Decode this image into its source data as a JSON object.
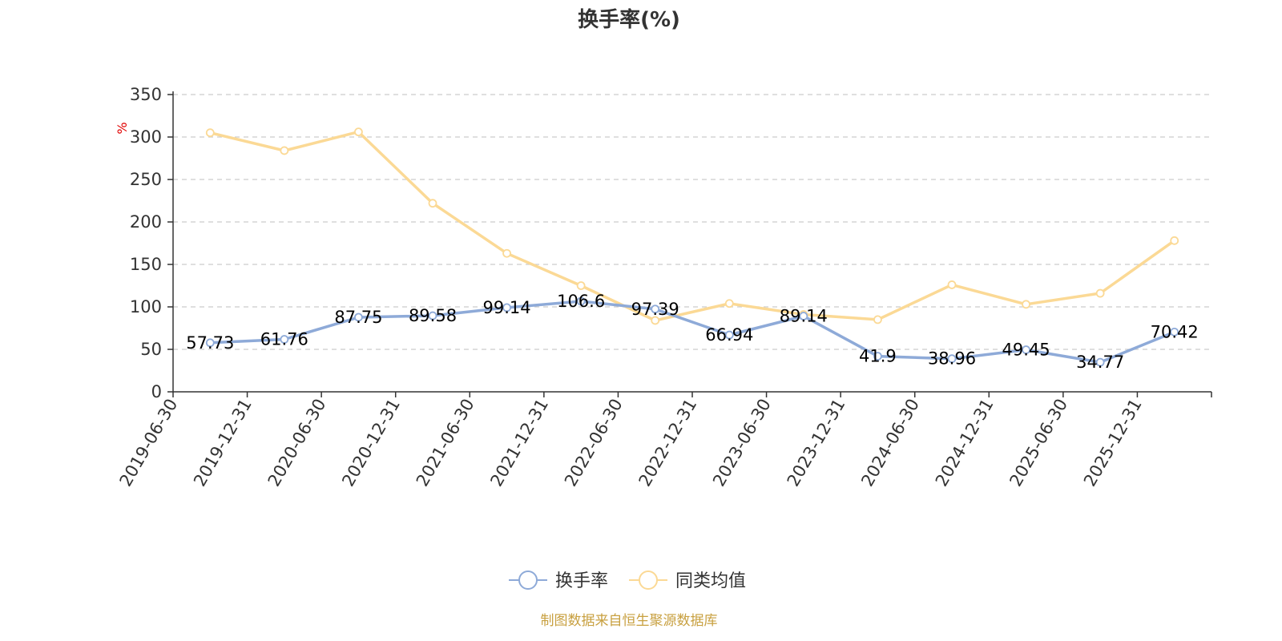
{
  "chart_data": {
    "type": "line",
    "title": "换手率(%)",
    "ylabel": "%",
    "xlabel": "",
    "ylim": [
      0,
      350
    ],
    "yticks": [
      0,
      50,
      100,
      150,
      200,
      250,
      300,
      350
    ],
    "grid": true,
    "legend_position": "bottom",
    "categories": [
      "2019-06-30",
      "2019-12-31",
      "2020-06-30",
      "2020-12-31",
      "2021-06-30",
      "2021-12-31",
      "2022-06-30",
      "2022-12-31",
      "2023-06-30",
      "2023-12-31",
      "2024-06-30",
      "2024-12-31",
      "2025-06-30",
      "2025-12-31"
    ],
    "series": [
      {
        "name": "换手率",
        "color": "#8eaad8",
        "values": [
          57.73,
          61.76,
          87.75,
          89.58,
          99.14,
          106.6,
          97.39,
          66.94,
          89.14,
          41.9,
          38.96,
          49.45,
          34.77,
          70.42
        ],
        "labels": [
          "57.73",
          "61.76",
          "87.75",
          "89.58",
          "99.14",
          "106.6",
          "97.39",
          "66.94",
          "89.14",
          "41.9",
          "38.96",
          "49.45",
          "34.77",
          "70.42"
        ]
      },
      {
        "name": "同类均值",
        "color": "#fbd995",
        "values": [
          305,
          284,
          306,
          222,
          163,
          125,
          84,
          104,
          91,
          85,
          126,
          103,
          116,
          178
        ]
      }
    ],
    "source": "制图数据来自恒生聚源数据库"
  }
}
